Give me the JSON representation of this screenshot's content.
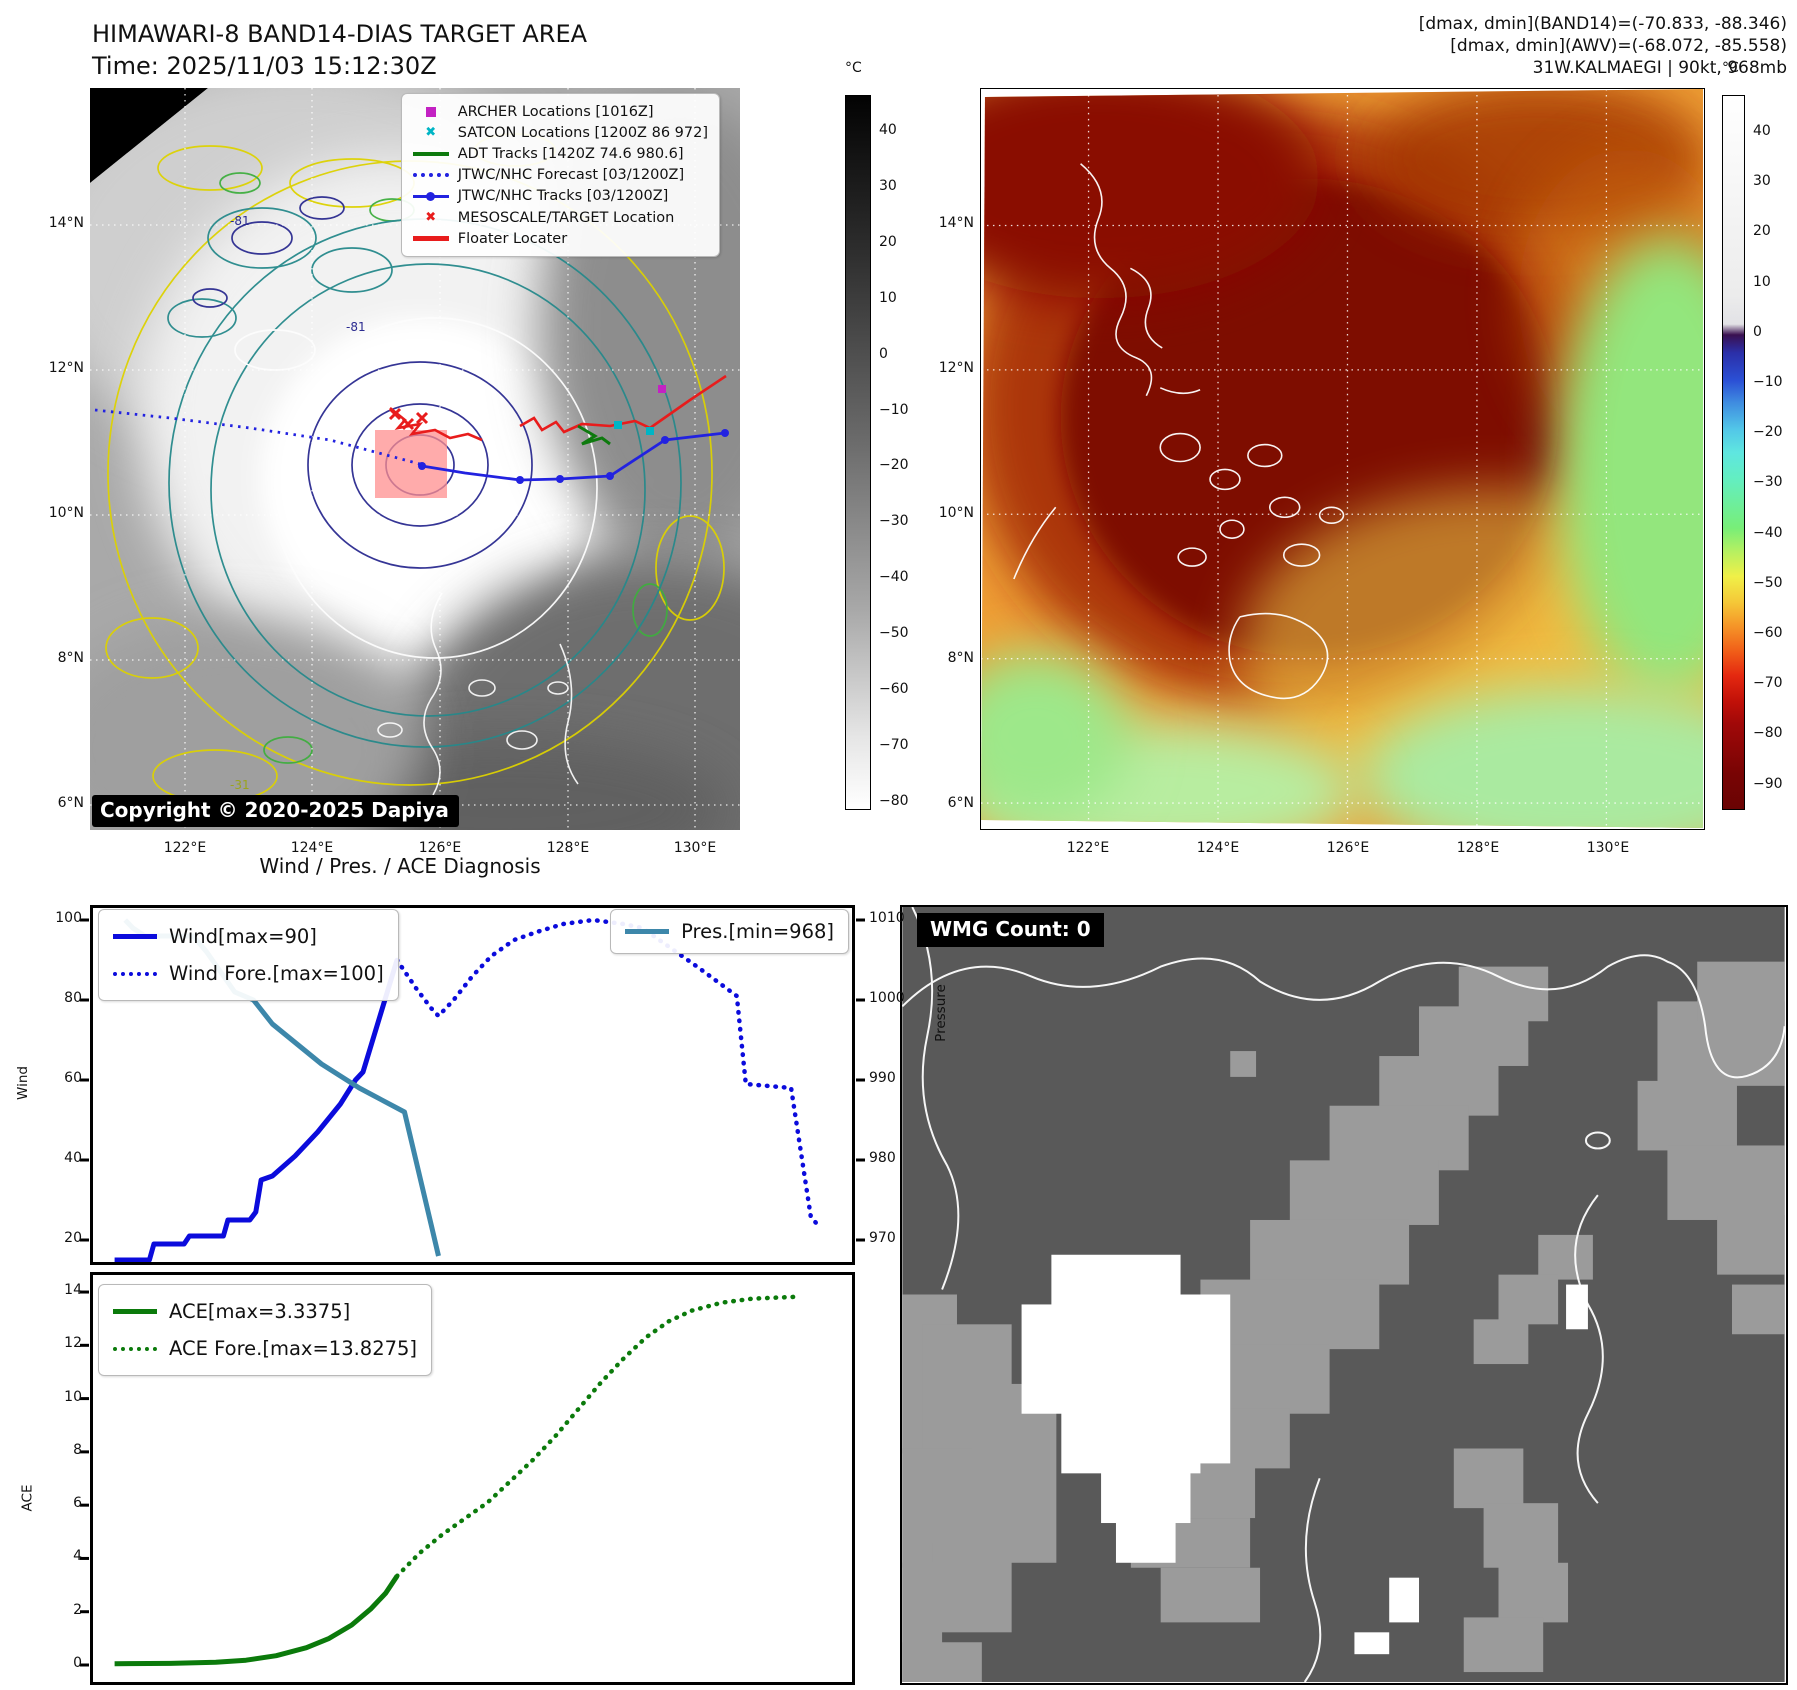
{
  "header": {
    "title_line1": "HIMAWARI-8 BAND14-DIAS TARGET AREA",
    "title_line2": "Time: 2025/11/03 15:12:30Z",
    "right_line1": "[dmax, dmin](BAND14)=(-70.833, -88.346)",
    "right_line2": "[dmax, dmin](AWV)=(-68.072, -85.558)",
    "right_line3": "31W.KALMAEGI | 90kt, 968mb"
  },
  "map_band14": {
    "copyright": "Copyright © 2020-2025 Dapiya",
    "lat_ticks": [
      "14°N",
      "12°N",
      "10°N",
      "8°N",
      "6°N"
    ],
    "lon_ticks": [
      "122°E",
      "124°E",
      "126°E",
      "128°E",
      "130°E"
    ],
    "contour_labels": [
      "-81",
      "-81",
      "-31"
    ],
    "colorbar": {
      "unit": "°C",
      "ticks": [
        40,
        30,
        20,
        10,
        0,
        -10,
        -20,
        -30,
        -40,
        -50,
        -60,
        -70,
        -80
      ]
    },
    "legend": [
      {
        "label": "ARCHER Locations [1016Z]",
        "marker": "square",
        "color": "#c322c3"
      },
      {
        "label": "SATCON Locations [1200Z 86 972]",
        "marker": "x",
        "color": "#00b5c5"
      },
      {
        "label": "ADT Tracks [1420Z 74.6 980.6]",
        "marker": "line",
        "color": "#0e7a0e"
      },
      {
        "label": "JTWC/NHC Forecast [03/1200Z]",
        "marker": "dotted",
        "color": "#2222e0"
      },
      {
        "label": "JTWC/NHC Tracks [03/1200Z]",
        "marker": "line-dot",
        "color": "#2222e0"
      },
      {
        "label": "MESOSCALE/TARGET Location",
        "marker": "x",
        "color": "#e81c1c"
      },
      {
        "label": "Floater Locater",
        "marker": "line",
        "color": "#e81c1c"
      }
    ]
  },
  "map_awv": {
    "lat_ticks": [
      "14°N",
      "12°N",
      "10°N",
      "8°N",
      "6°N"
    ],
    "lon_ticks": [
      "122°E",
      "124°E",
      "126°E",
      "128°E",
      "130°E"
    ],
    "colorbar": {
      "unit": "°C",
      "ticks": [
        40,
        30,
        20,
        10,
        0,
        -10,
        -20,
        -30,
        -40,
        -50,
        -60,
        -70,
        -80,
        -90
      ]
    }
  },
  "wmg": {
    "label": "WMG Count: 0"
  },
  "chart_data": [
    {
      "type": "line",
      "title": "Wind / Pres. / ACE Diagnosis",
      "x_axis": {
        "label": "",
        "range": [
          0,
          1
        ],
        "tick_labels_visible": false
      },
      "y_left": {
        "label": "Wind",
        "ticks": [
          20,
          40,
          60,
          80,
          100
        ]
      },
      "y_right": {
        "label": "Pressure",
        "ticks": [
          970,
          980,
          990,
          1000,
          1010
        ]
      },
      "series": [
        {
          "name": "Wind[max=90]",
          "style": "solid",
          "color": "#0b0bdc",
          "axis": "wind",
          "points": [
            [
              0.026,
              15
            ],
            [
              0.072,
              15
            ],
            [
              0.078,
              19
            ],
            [
              0.118,
              19
            ],
            [
              0.125,
              21
            ],
            [
              0.17,
              21
            ],
            [
              0.176,
              25
            ],
            [
              0.205,
              25
            ],
            [
              0.213,
              27
            ],
            [
              0.22,
              35
            ],
            [
              0.235,
              36
            ],
            [
              0.265,
              41
            ],
            [
              0.295,
              47
            ],
            [
              0.325,
              54
            ],
            [
              0.345,
              60
            ],
            [
              0.355,
              62
            ],
            [
              0.4,
              90
            ]
          ]
        },
        {
          "name": "Wind Fore.[max=100]",
          "style": "dotted",
          "color": "#0b0bdc",
          "axis": "wind",
          "points": [
            [
              0.4,
              90
            ],
            [
              0.425,
              83
            ],
            [
              0.445,
              78
            ],
            [
              0.455,
              76
            ],
            [
              0.475,
              80
            ],
            [
              0.5,
              86
            ],
            [
              0.525,
              91
            ],
            [
              0.555,
              95
            ],
            [
              0.585,
              97
            ],
            [
              0.62,
              99
            ],
            [
              0.66,
              100
            ],
            [
              0.7,
              99
            ],
            [
              0.725,
              98
            ],
            [
              0.755,
              94
            ],
            [
              0.8,
              88
            ],
            [
              0.85,
              81
            ],
            [
              0.862,
              59
            ],
            [
              0.922,
              58
            ],
            [
              0.948,
              26
            ],
            [
              0.956,
              24
            ]
          ]
        },
        {
          "name": "Pres.[min=968]",
          "style": "solid",
          "color": "#3d87aa",
          "axis": "pressure",
          "points": [
            [
              0.04,
              1010
            ],
            [
              0.05,
              1009
            ],
            [
              0.066,
              1008
            ],
            [
              0.13,
              1008
            ],
            [
              0.148,
              1006
            ],
            [
              0.185,
              1001
            ],
            [
              0.21,
              1000
            ],
            [
              0.235,
              997
            ],
            [
              0.3,
              992
            ],
            [
              0.35,
              989
            ],
            [
              0.41,
              986
            ],
            [
              0.445,
              972
            ],
            [
              0.455,
              968
            ]
          ]
        }
      ]
    },
    {
      "type": "line",
      "y_left": {
        "label": "ACE",
        "ticks": [
          0,
          2,
          4,
          6,
          8,
          10,
          12,
          14
        ]
      },
      "series": [
        {
          "name": "ACE[max=3.3375]",
          "style": "solid",
          "color": "#0b7a0b",
          "points": [
            [
              0.026,
              0.05
            ],
            [
              0.1,
              0.06
            ],
            [
              0.16,
              0.1
            ],
            [
              0.2,
              0.18
            ],
            [
              0.24,
              0.35
            ],
            [
              0.28,
              0.65
            ],
            [
              0.31,
              1.0
            ],
            [
              0.34,
              1.5
            ],
            [
              0.365,
              2.1
            ],
            [
              0.385,
              2.7
            ],
            [
              0.4,
              3.3375
            ]
          ]
        },
        {
          "name": "ACE Fore.[max=13.8275]",
          "style": "dotted",
          "color": "#0b7a0b",
          "points": [
            [
              0.4,
              3.3375
            ],
            [
              0.43,
              4.2
            ],
            [
              0.46,
              4.9
            ],
            [
              0.49,
              5.5
            ],
            [
              0.52,
              6.1
            ],
            [
              0.55,
              6.9
            ],
            [
              0.58,
              7.7
            ],
            [
              0.61,
              8.6
            ],
            [
              0.64,
              9.6
            ],
            [
              0.67,
              10.6
            ],
            [
              0.7,
              11.5
            ],
            [
              0.73,
              12.3
            ],
            [
              0.76,
              12.9
            ],
            [
              0.79,
              13.3
            ],
            [
              0.83,
              13.6
            ],
            [
              0.87,
              13.75
            ],
            [
              0.91,
              13.8
            ],
            [
              0.935,
              13.8275
            ]
          ]
        }
      ]
    }
  ]
}
